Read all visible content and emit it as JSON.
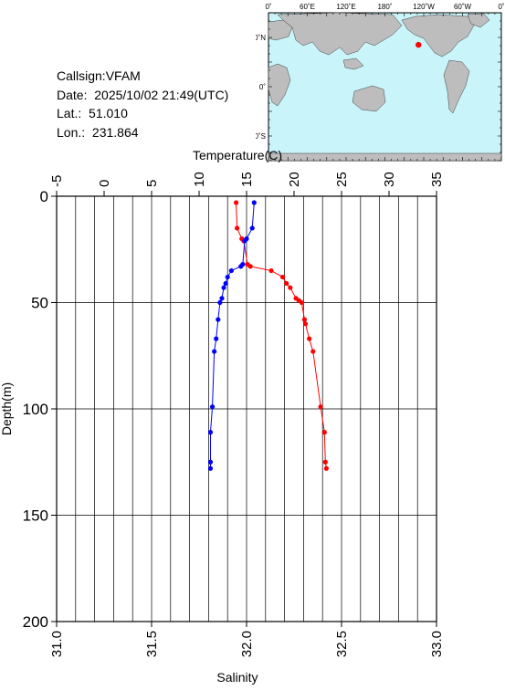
{
  "meta": {
    "callsign_label": "Callsign:",
    "callsign": "VFAM",
    "date_label": "Date:",
    "date": "2025/10/02 21:49(UTC)",
    "lat_label": "Lat.:",
    "lat": "51.010",
    "lon_label": "Lon.:",
    "lon": "231.864"
  },
  "map": {
    "lon_ticks": [
      "0˚",
      "60˚E",
      "120˚E",
      "180˚",
      "120˚W",
      "60˚W",
      "0˚"
    ],
    "lat_ticks": [
      "60˚N",
      "0˚",
      "60˚S"
    ],
    "ocean_color": "#c8f4fa",
    "land_color": "#bdbdbd",
    "marker_color": "#ff0000",
    "station": {
      "lat": 51.01,
      "lon": 231.864
    }
  },
  "chart_data": {
    "type": "line",
    "depth_label": "Depth(m)",
    "temperature_label": "Temperature(C)",
    "salinity_label": "Salinity",
    "depth_range": [
      0,
      200
    ],
    "depth_ticks": [
      0,
      50,
      100,
      150,
      200
    ],
    "temperature_range": [
      -5,
      35
    ],
    "temperature_ticks": [
      -5,
      0,
      5,
      10,
      15,
      20,
      25,
      30,
      35
    ],
    "salinity_range": [
      31.0,
      33.0
    ],
    "salinity_ticks": [
      "31.0",
      "31.5",
      "32.0",
      "32.5",
      "33.0"
    ],
    "grid": true,
    "series": [
      {
        "variable": "temperature",
        "color": "#ff0000",
        "points": [
          {
            "depth": 3,
            "value": 13.9
          },
          {
            "depth": 15,
            "value": 14.0
          },
          {
            "depth": 20,
            "value": 14.5
          },
          {
            "depth": 21,
            "value": 14.7
          },
          {
            "depth": 32,
            "value": 15.1
          },
          {
            "depth": 33,
            "value": 15.4
          },
          {
            "depth": 35,
            "value": 17.6
          },
          {
            "depth": 38,
            "value": 18.8
          },
          {
            "depth": 41,
            "value": 19.2
          },
          {
            "depth": 43,
            "value": 19.6
          },
          {
            "depth": 48,
            "value": 20.2
          },
          {
            "depth": 49,
            "value": 20.5
          },
          {
            "depth": 50,
            "value": 20.8
          },
          {
            "depth": 58,
            "value": 21.1
          },
          {
            "depth": 60,
            "value": 21.2
          },
          {
            "depth": 67,
            "value": 21.6
          },
          {
            "depth": 73,
            "value": 22.0
          },
          {
            "depth": 99,
            "value": 22.8
          },
          {
            "depth": 111,
            "value": 23.2
          },
          {
            "depth": 125,
            "value": 23.3
          },
          {
            "depth": 128,
            "value": 23.4
          }
        ]
      },
      {
        "variable": "salinity",
        "color": "#0000ff",
        "points": [
          {
            "depth": 3,
            "value": 32.04
          },
          {
            "depth": 15,
            "value": 32.03
          },
          {
            "depth": 20,
            "value": 32.0
          },
          {
            "depth": 21,
            "value": 31.99
          },
          {
            "depth": 32,
            "value": 31.98
          },
          {
            "depth": 33,
            "value": 31.97
          },
          {
            "depth": 35,
            "value": 31.92
          },
          {
            "depth": 38,
            "value": 31.9
          },
          {
            "depth": 41,
            "value": 31.89
          },
          {
            "depth": 43,
            "value": 31.88
          },
          {
            "depth": 48,
            "value": 31.87
          },
          {
            "depth": 50,
            "value": 31.86
          },
          {
            "depth": 58,
            "value": 31.85
          },
          {
            "depth": 67,
            "value": 31.84
          },
          {
            "depth": 73,
            "value": 31.83
          },
          {
            "depth": 99,
            "value": 31.82
          },
          {
            "depth": 111,
            "value": 31.81
          },
          {
            "depth": 125,
            "value": 31.81
          },
          {
            "depth": 128,
            "value": 31.81
          }
        ]
      }
    ]
  }
}
